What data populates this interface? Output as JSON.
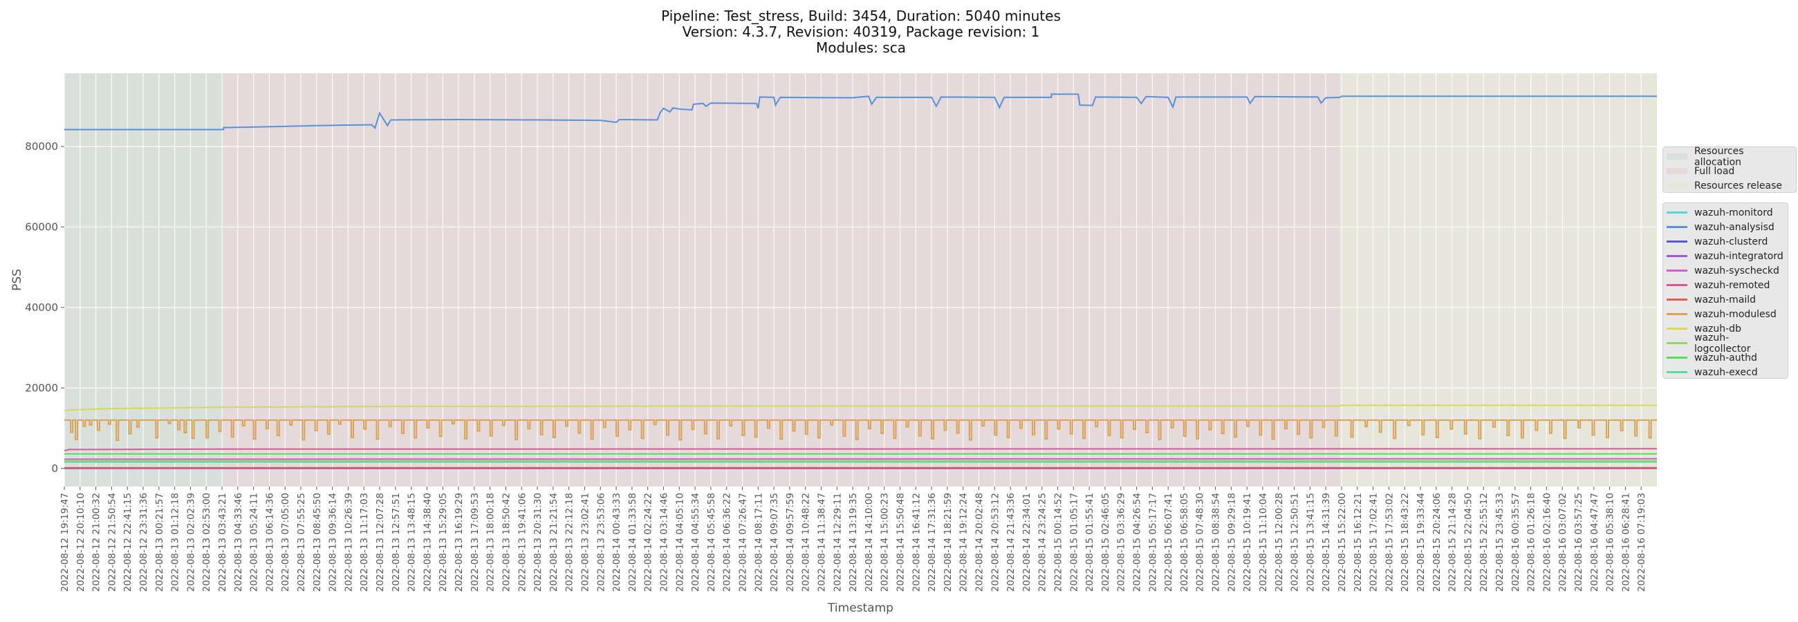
{
  "chart_data": {
    "type": "line",
    "title": [
      "Pipeline: Test_stress, Build: 3454, Duration: 5040 minutes",
      "Version: 4.3.7, Revision: 40319, Package revision: 1",
      "Modules: sca"
    ],
    "xlabel": "Timestamp",
    "ylabel": "PSS",
    "ylim": [
      -4500,
      98200
    ],
    "xlim": [
      0,
      101
    ],
    "yticks": [
      0,
      20000,
      40000,
      60000,
      80000
    ],
    "ytick_labels": [
      "0",
      "20000",
      "40000",
      "60000",
      "80000"
    ],
    "grid": true,
    "x_note": "x values are indices into categories (timestamp tick labels)",
    "categories": [
      "2022-08-12 19:19:47",
      "2022-08-12 20:10:10",
      "2022-08-12 21:00:32",
      "2022-08-12 21:50:54",
      "2022-08-12 22:41:15",
      "2022-08-12 23:31:36",
      "2022-08-13 00:21:57",
      "2022-08-13 01:12:18",
      "2022-08-13 02:02:39",
      "2022-08-13 02:53:00",
      "2022-08-13 03:43:21",
      "2022-08-13 04:33:46",
      "2022-08-13 05:24:11",
      "2022-08-13 06:14:36",
      "2022-08-13 07:05:00",
      "2022-08-13 07:55:25",
      "2022-08-13 08:45:50",
      "2022-08-13 09:36:14",
      "2022-08-13 10:26:39",
      "2022-08-13 11:17:03",
      "2022-08-13 12:07:28",
      "2022-08-13 12:57:51",
      "2022-08-13 13:48:15",
      "2022-08-13 14:38:40",
      "2022-08-13 15:29:05",
      "2022-08-13 16:19:29",
      "2022-08-13 17:09:53",
      "2022-08-13 18:00:18",
      "2022-08-13 18:50:42",
      "2022-08-13 19:41:06",
      "2022-08-13 20:31:30",
      "2022-08-13 21:21:54",
      "2022-08-13 22:12:18",
      "2022-08-13 23:02:41",
      "2022-08-13 23:53:06",
      "2022-08-14 00:43:33",
      "2022-08-14 01:33:58",
      "2022-08-14 02:24:22",
      "2022-08-14 03:14:46",
      "2022-08-14 04:05:10",
      "2022-08-14 04:55:34",
      "2022-08-14 05:45:58",
      "2022-08-14 06:36:22",
      "2022-08-14 07:26:47",
      "2022-08-14 08:17:11",
      "2022-08-14 09:07:35",
      "2022-08-14 09:57:59",
      "2022-08-14 10:48:22",
      "2022-08-14 11:38:47",
      "2022-08-14 12:29:11",
      "2022-08-14 13:19:35",
      "2022-08-14 14:10:00",
      "2022-08-14 15:00:23",
      "2022-08-14 15:50:48",
      "2022-08-14 16:41:12",
      "2022-08-14 17:31:36",
      "2022-08-14 18:21:59",
      "2022-08-14 19:12:24",
      "2022-08-14 20:02:48",
      "2022-08-14 20:53:12",
      "2022-08-14 21:43:36",
      "2022-08-14 22:34:01",
      "2022-08-14 23:24:25",
      "2022-08-15 00:14:52",
      "2022-08-15 01:05:17",
      "2022-08-15 01:55:41",
      "2022-08-15 02:46:05",
      "2022-08-15 03:36:29",
      "2022-08-15 04:26:54",
      "2022-08-15 05:17:17",
      "2022-08-15 06:07:41",
      "2022-08-15 06:58:05",
      "2022-08-15 07:48:30",
      "2022-08-15 08:38:54",
      "2022-08-15 09:29:18",
      "2022-08-15 10:19:41",
      "2022-08-15 11:10:04",
      "2022-08-15 12:00:28",
      "2022-08-15 12:50:51",
      "2022-08-15 13:41:15",
      "2022-08-15 14:31:39",
      "2022-08-15 15:22:00",
      "2022-08-15 16:12:21",
      "2022-08-15 17:02:41",
      "2022-08-15 17:53:02",
      "2022-08-15 18:43:22",
      "2022-08-15 19:33:44",
      "2022-08-15 20:24:06",
      "2022-08-15 21:14:28",
      "2022-08-15 22:04:50",
      "2022-08-15 22:55:12",
      "2022-08-15 23:45:33",
      "2022-08-16 00:35:57",
      "2022-08-16 01:26:18",
      "2022-08-16 02:16:40",
      "2022-08-16 03:07:02",
      "2022-08-16 03:57:25",
      "2022-08-16 04:47:47",
      "2022-08-16 05:38:10",
      "2022-08-16 06:28:41",
      "2022-08-16 07:19:03"
    ],
    "phases": [
      {
        "name": "Resources allocation",
        "start": 0,
        "end": 10.1,
        "color": "#d9e0da"
      },
      {
        "name": "Full load",
        "start": 10.1,
        "end": 80.9,
        "color": "#e5d9da"
      },
      {
        "name": "Resources release",
        "start": 80.9,
        "end": 101,
        "color": "#e6e6da"
      }
    ],
    "legend_placement": "right",
    "series": [
      {
        "name": "wazuh-monitord",
        "color": "#57d3db",
        "points": [
          [
            0,
            1700
          ],
          [
            101,
            1700
          ]
        ]
      },
      {
        "name": "wazuh-analysisd",
        "color": "#5791db",
        "points": [
          [
            0,
            84200
          ],
          [
            10.1,
            84200
          ],
          [
            10.1,
            84700
          ],
          [
            13,
            84900
          ],
          [
            16,
            85200
          ],
          [
            19.5,
            85400
          ],
          [
            19.7,
            84600
          ],
          [
            20,
            88300
          ],
          [
            20.3,
            86400
          ],
          [
            20.5,
            85200
          ],
          [
            20.7,
            86600
          ],
          [
            25,
            86700
          ],
          [
            30,
            86600
          ],
          [
            34,
            86500
          ],
          [
            35,
            86000
          ],
          [
            35.2,
            86700
          ],
          [
            37.6,
            86600
          ],
          [
            37.8,
            88500
          ],
          [
            38,
            89500
          ],
          [
            38.4,
            88600
          ],
          [
            38.6,
            89600
          ],
          [
            39,
            89300
          ],
          [
            39.8,
            89100
          ],
          [
            39.9,
            90500
          ],
          [
            40.5,
            90700
          ],
          [
            40.7,
            90000
          ],
          [
            41,
            90800
          ],
          [
            43.9,
            90700
          ],
          [
            44,
            89500
          ],
          [
            44.1,
            92300
          ],
          [
            45,
            92200
          ],
          [
            45.1,
            90300
          ],
          [
            45.4,
            92200
          ],
          [
            50,
            92100
          ],
          [
            51,
            92500
          ],
          [
            51.2,
            90500
          ],
          [
            51.5,
            92200
          ],
          [
            55,
            92200
          ],
          [
            55.3,
            90000
          ],
          [
            55.6,
            92300
          ],
          [
            59,
            92200
          ],
          [
            59.3,
            89700
          ],
          [
            59.6,
            92200
          ],
          [
            62.6,
            92200
          ],
          [
            62.6,
            93000
          ],
          [
            64.3,
            93000
          ],
          [
            64.4,
            90300
          ],
          [
            65.2,
            90200
          ],
          [
            65.4,
            92300
          ],
          [
            68,
            92200
          ],
          [
            68.3,
            90700
          ],
          [
            68.6,
            92400
          ],
          [
            70,
            92200
          ],
          [
            70.3,
            89800
          ],
          [
            70.5,
            92300
          ],
          [
            75,
            92300
          ],
          [
            75.2,
            90700
          ],
          [
            75.5,
            92400
          ],
          [
            79.5,
            92300
          ],
          [
            79.7,
            90800
          ],
          [
            80,
            92100
          ],
          [
            80.9,
            92200
          ],
          [
            81,
            92500
          ],
          [
            101,
            92500
          ]
        ]
      },
      {
        "name": "wazuh-clusterd",
        "color": "#5f57db",
        "points": [
          [
            0,
            0
          ],
          [
            101,
            0
          ]
        ]
      },
      {
        "name": "wazuh-integratord",
        "color": "#a157db",
        "points": [
          [
            0,
            80
          ],
          [
            101,
            80
          ]
        ]
      },
      {
        "name": "wazuh-syscheckd",
        "color": "#db57d3",
        "points": [
          [
            0,
            2300
          ],
          [
            101,
            2400
          ]
        ]
      },
      {
        "name": "wazuh-remoted",
        "color": "#db5791",
        "points": [
          [
            0,
            4400
          ],
          [
            0.3,
            4700
          ],
          [
            10,
            4800
          ],
          [
            101,
            4900
          ]
        ]
      },
      {
        "name": "wazuh-maild",
        "color": "#db5f57",
        "points": [
          [
            0,
            170
          ],
          [
            101,
            170
          ]
        ]
      },
      {
        "name": "wazuh-modulesd",
        "color": "#dba157",
        "baseline": 12000,
        "dips": [
          [
            0.4,
            9000
          ],
          [
            0.7,
            7200
          ],
          [
            1.2,
            10500
          ],
          [
            1.6,
            10800
          ],
          [
            2.1,
            9500
          ],
          [
            2.8,
            11000
          ],
          [
            3.3,
            7000
          ],
          [
            4.1,
            8600
          ],
          [
            4.6,
            10300
          ],
          [
            5.8,
            7600
          ],
          [
            6.6,
            11200
          ],
          [
            7.2,
            9600
          ],
          [
            7.6,
            8900
          ],
          [
            8.1,
            7500
          ],
          [
            9.0,
            7600
          ],
          [
            9.8,
            9200
          ],
          [
            10.6,
            7800
          ],
          [
            11.3,
            10600
          ],
          [
            12.0,
            7300
          ],
          [
            12.8,
            9900
          ],
          [
            13.5,
            8200
          ],
          [
            14.3,
            10800
          ],
          [
            15.1,
            7100
          ],
          [
            15.9,
            9400
          ],
          [
            16.7,
            8500
          ],
          [
            17.4,
            11000
          ],
          [
            18.2,
            7700
          ],
          [
            19.0,
            9800
          ],
          [
            19.8,
            7300
          ],
          [
            20.6,
            10400
          ],
          [
            21.4,
            8700
          ],
          [
            22.2,
            7600
          ],
          [
            23.0,
            10100
          ],
          [
            23.8,
            8000
          ],
          [
            24.6,
            11100
          ],
          [
            25.4,
            7400
          ],
          [
            26.2,
            9300
          ],
          [
            27.0,
            8100
          ],
          [
            27.8,
            10700
          ],
          [
            28.6,
            7200
          ],
          [
            29.4,
            9900
          ],
          [
            30.2,
            8400
          ],
          [
            31.0,
            7700
          ],
          [
            31.8,
            10500
          ],
          [
            32.6,
            8800
          ],
          [
            33.4,
            7300
          ],
          [
            34.2,
            10200
          ],
          [
            35.0,
            8000
          ],
          [
            35.8,
            9600
          ],
          [
            36.6,
            7500
          ],
          [
            37.4,
            10900
          ],
          [
            38.2,
            8300
          ],
          [
            39.0,
            7100
          ],
          [
            39.8,
            9700
          ],
          [
            40.6,
            8600
          ],
          [
            41.4,
            7400
          ],
          [
            42.2,
            10600
          ],
          [
            43.0,
            8200
          ],
          [
            43.8,
            7800
          ],
          [
            44.6,
            10000
          ],
          [
            45.4,
            7300
          ],
          [
            46.2,
            9300
          ],
          [
            47.0,
            8500
          ],
          [
            47.8,
            7600
          ],
          [
            48.6,
            10800
          ],
          [
            49.4,
            8000
          ],
          [
            50.2,
            7200
          ],
          [
            51.0,
            9900
          ],
          [
            51.8,
            8700
          ],
          [
            52.6,
            7500
          ],
          [
            53.4,
            10300
          ],
          [
            54.2,
            8100
          ],
          [
            55.0,
            7400
          ],
          [
            55.8,
            9500
          ],
          [
            56.6,
            8800
          ],
          [
            57.4,
            7100
          ],
          [
            58.2,
            10600
          ],
          [
            59.0,
            8300
          ],
          [
            59.8,
            7700
          ],
          [
            60.6,
            10000
          ],
          [
            61.4,
            8400
          ],
          [
            62.2,
            7300
          ],
          [
            63.0,
            9800
          ],
          [
            63.8,
            8600
          ],
          [
            64.6,
            7500
          ],
          [
            65.4,
            10400
          ],
          [
            66.2,
            8200
          ],
          [
            67.0,
            7600
          ],
          [
            67.8,
            9700
          ],
          [
            68.6,
            8900
          ],
          [
            69.4,
            7200
          ],
          [
            70.2,
            10100
          ],
          [
            71.0,
            8000
          ],
          [
            71.8,
            7400
          ],
          [
            72.6,
            9600
          ],
          [
            73.4,
            8700
          ],
          [
            74.2,
            7800
          ],
          [
            75.0,
            10500
          ],
          [
            75.8,
            8300
          ],
          [
            76.6,
            7300
          ],
          [
            77.4,
            9900
          ],
          [
            78.2,
            8500
          ],
          [
            79.0,
            7600
          ],
          [
            79.8,
            10200
          ],
          [
            80.6,
            8100
          ],
          [
            81.6,
            7800
          ],
          [
            82.5,
            10400
          ],
          [
            83.4,
            9000
          ],
          [
            84.3,
            7500
          ],
          [
            85.2,
            10700
          ],
          [
            86.1,
            8400
          ],
          [
            87.0,
            7700
          ],
          [
            87.9,
            9800
          ],
          [
            88.8,
            8600
          ],
          [
            89.7,
            7400
          ],
          [
            90.6,
            10300
          ],
          [
            91.5,
            8200
          ],
          [
            92.4,
            7600
          ],
          [
            93.3,
            9500
          ],
          [
            94.2,
            8800
          ],
          [
            95.1,
            7500
          ],
          [
            96.0,
            10100
          ],
          [
            96.9,
            8300
          ],
          [
            97.8,
            7700
          ],
          [
            98.7,
            9400
          ],
          [
            99.6,
            8100
          ],
          [
            100.5,
            7600
          ]
        ]
      },
      {
        "name": "wazuh-db",
        "color": "#d3db57",
        "points": [
          [
            0,
            14300
          ],
          [
            0.3,
            14500
          ],
          [
            3,
            14900
          ],
          [
            6,
            15000
          ],
          [
            10,
            15200
          ],
          [
            20,
            15400
          ],
          [
            40,
            15500
          ],
          [
            80.9,
            15500
          ],
          [
            81,
            15700
          ],
          [
            101,
            15700
          ]
        ]
      },
      {
        "name": "wazuh-logcollector",
        "color": "#91db57",
        "points": [
          [
            0,
            1900
          ],
          [
            101,
            1900
          ]
        ]
      },
      {
        "name": "wazuh-authd",
        "color": "#57db5f",
        "points": [
          [
            0,
            3600
          ],
          [
            101,
            3600
          ]
        ]
      },
      {
        "name": "wazuh-execd",
        "color": "#57dba1",
        "points": [
          [
            0,
            1600
          ],
          [
            101,
            1600
          ]
        ]
      }
    ]
  }
}
